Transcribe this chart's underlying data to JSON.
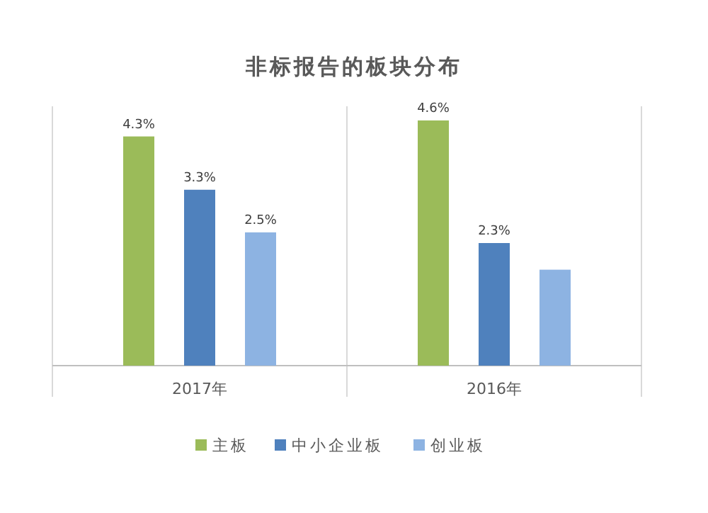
{
  "chart_data": {
    "type": "bar",
    "title": "非标报告的板块分布",
    "categories": [
      "2017年",
      "2016年"
    ],
    "series": [
      {
        "name": "主板",
        "color": "#9bbb59",
        "values": [
          4.3,
          4.6
        ],
        "value_labels": [
          "4.3%",
          "4.6%"
        ]
      },
      {
        "name": "中小企业板",
        "color": "#4f81bd",
        "values": [
          3.3,
          2.3
        ],
        "value_labels": [
          "3.3%",
          "2.3%"
        ]
      },
      {
        "name": "创业板",
        "color": "#8db3e2",
        "values": [
          2.5,
          1.8
        ],
        "value_labels": [
          "2.5%",
          null
        ]
      }
    ],
    "legend": "bottom",
    "grid": false
  }
}
